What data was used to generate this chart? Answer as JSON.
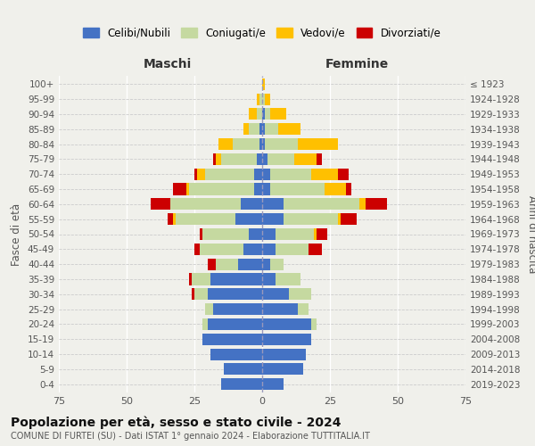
{
  "age_groups": [
    "0-4",
    "5-9",
    "10-14",
    "15-19",
    "20-24",
    "25-29",
    "30-34",
    "35-39",
    "40-44",
    "45-49",
    "50-54",
    "55-59",
    "60-64",
    "65-69",
    "70-74",
    "75-79",
    "80-84",
    "85-89",
    "90-94",
    "95-99",
    "100+"
  ],
  "birth_years": [
    "2019-2023",
    "2014-2018",
    "2009-2013",
    "2004-2008",
    "1999-2003",
    "1994-1998",
    "1989-1993",
    "1984-1988",
    "1979-1983",
    "1974-1978",
    "1969-1973",
    "1964-1968",
    "1959-1963",
    "1954-1958",
    "1949-1953",
    "1944-1948",
    "1939-1943",
    "1934-1938",
    "1929-1933",
    "1924-1928",
    "≤ 1923"
  ],
  "male": {
    "celibi": [
      15,
      14,
      19,
      22,
      20,
      18,
      20,
      19,
      9,
      7,
      5,
      10,
      8,
      3,
      3,
      2,
      1,
      1,
      0,
      0,
      0
    ],
    "coniugati": [
      0,
      0,
      0,
      0,
      2,
      3,
      5,
      7,
      8,
      16,
      17,
      22,
      26,
      24,
      18,
      13,
      10,
      4,
      2,
      1,
      0
    ],
    "vedovi": [
      0,
      0,
      0,
      0,
      0,
      0,
      0,
      0,
      0,
      0,
      0,
      1,
      0,
      1,
      3,
      2,
      5,
      2,
      3,
      1,
      0
    ],
    "divorziati": [
      0,
      0,
      0,
      0,
      0,
      0,
      1,
      1,
      3,
      2,
      1,
      2,
      7,
      5,
      1,
      1,
      0,
      0,
      0,
      0,
      0
    ]
  },
  "female": {
    "nubili": [
      8,
      15,
      16,
      18,
      18,
      13,
      10,
      5,
      3,
      5,
      5,
      8,
      8,
      3,
      3,
      2,
      1,
      1,
      1,
      0,
      0
    ],
    "coniugate": [
      0,
      0,
      0,
      0,
      2,
      4,
      8,
      9,
      5,
      12,
      14,
      20,
      28,
      20,
      15,
      10,
      12,
      5,
      2,
      1,
      0
    ],
    "vedove": [
      0,
      0,
      0,
      0,
      0,
      0,
      0,
      0,
      0,
      0,
      1,
      1,
      2,
      8,
      10,
      8,
      15,
      8,
      6,
      2,
      1
    ],
    "divorziate": [
      0,
      0,
      0,
      0,
      0,
      0,
      0,
      0,
      0,
      5,
      4,
      6,
      8,
      2,
      4,
      2,
      0,
      0,
      0,
      0,
      0
    ]
  },
  "colors": {
    "celibi": "#4472c4",
    "coniugati": "#c5d9a0",
    "vedovi": "#ffc000",
    "divorziati": "#cc0000"
  },
  "xlim": 75,
  "title_main": "Popolazione per età, sesso e stato civile - 2024",
  "title_sub": "COMUNE DI FURTEI (SU) - Dati ISTAT 1° gennaio 2024 - Elaborazione TUTTITALIA.IT",
  "ylabel_left": "Fasce di età",
  "ylabel_right": "Anni di nascita",
  "xlabel_left": "Maschi",
  "xlabel_right": "Femmine",
  "legend_labels": [
    "Celibi/Nubili",
    "Coniugati/e",
    "Vedovi/e",
    "Divorziati/e"
  ],
  "bg_color": "#f0f0eb"
}
